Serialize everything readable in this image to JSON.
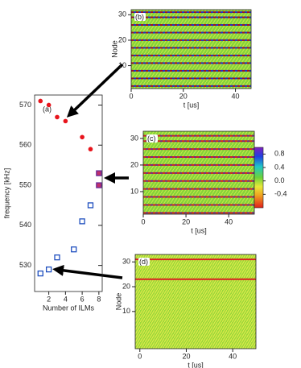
{
  "chart_data": [
    {
      "type": "scatter",
      "label": "(a)",
      "xlabel": "Number of ILMs",
      "ylabel": "frequency [kHz]",
      "xlim": [
        0.3,
        8.4
      ],
      "ylim": [
        523.5,
        572.5
      ],
      "xticks": [
        2,
        4,
        6,
        8
      ],
      "yticks": [
        530,
        540,
        550,
        560,
        570
      ],
      "series": [
        {
          "color": "#e8141c",
          "marker": "circle",
          "x": [
            1,
            2,
            3,
            4,
            6,
            7
          ],
          "values": [
            571,
            570,
            567,
            566,
            562,
            559
          ]
        },
        {
          "color": "#1f4fbf",
          "marker": "square",
          "x": [
            1,
            2,
            3,
            5,
            6,
            7
          ],
          "values": [
            528,
            529,
            532,
            534,
            541,
            545
          ]
        },
        {
          "color": "#6a2a9a",
          "marker": "square",
          "x": [
            8,
            8
          ],
          "values": [
            550,
            553
          ]
        }
      ]
    },
    {
      "type": "heatmap",
      "label": "(b)",
      "xlabel": "t [us]",
      "ylabel": "Node",
      "xlim": [
        0,
        46
      ],
      "ylim": [
        1,
        32
      ],
      "xticks": [
        0,
        20,
        40
      ],
      "yticks": [
        10,
        20,
        30
      ]
    },
    {
      "type": "heatmap",
      "label": "(c)",
      "xlabel": "t [us]",
      "xlim": [
        0,
        52
      ],
      "ylim": [
        1.5,
        32.7
      ],
      "xticks": [
        0,
        20,
        40
      ],
      "yticks": [
        10,
        20,
        30
      ],
      "colorbar": {
        "lim": [
          -0.8,
          1.0
        ],
        "ticks": [
          0.8,
          0.4,
          {
            "value": 0,
            "label": "0.0"
          },
          -0.4
        ]
      }
    },
    {
      "type": "heatmap",
      "label": "(d)",
      "xlabel": "t [us]",
      "ylabel": "Node",
      "xlim": [
        -2,
        50
      ],
      "ylim": [
        -5,
        33
      ],
      "xticks": [
        0,
        20,
        40
      ],
      "yticks": [
        10,
        20,
        30
      ]
    }
  ]
}
